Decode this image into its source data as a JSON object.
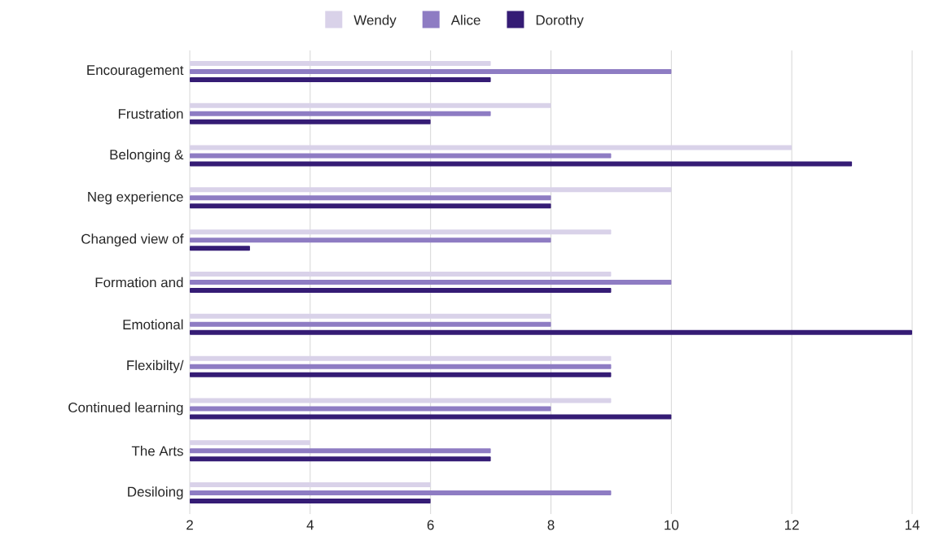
{
  "chart_data": {
    "type": "bar",
    "orientation": "horizontal",
    "categories": [
      "Encouragement",
      "Frustration",
      "Belonging &",
      "Neg experience",
      "Changed view of",
      "Formation and",
      "Emotional",
      "Flexibilty/",
      "Continued learning",
      "The Arts",
      "Desiloing"
    ],
    "series": [
      {
        "name": "Wendy",
        "color": "#d9d2e9",
        "values": [
          7,
          8,
          12,
          10,
          9,
          9,
          8,
          9,
          9,
          4,
          6
        ]
      },
      {
        "name": "Alice",
        "color": "#8e7cc3",
        "values": [
          10,
          7,
          9,
          8,
          8,
          10,
          8,
          9,
          8,
          7,
          9
        ]
      },
      {
        "name": "Dorothy",
        "color": "#351c75",
        "values": [
          7,
          6,
          13,
          8,
          3,
          9,
          14,
          9,
          10,
          7,
          6
        ]
      }
    ],
    "xlim": [
      2,
      14
    ],
    "xticks": [
      2,
      4,
      6,
      8,
      10,
      12,
      14
    ],
    "grid": "x",
    "legend": "top"
  }
}
